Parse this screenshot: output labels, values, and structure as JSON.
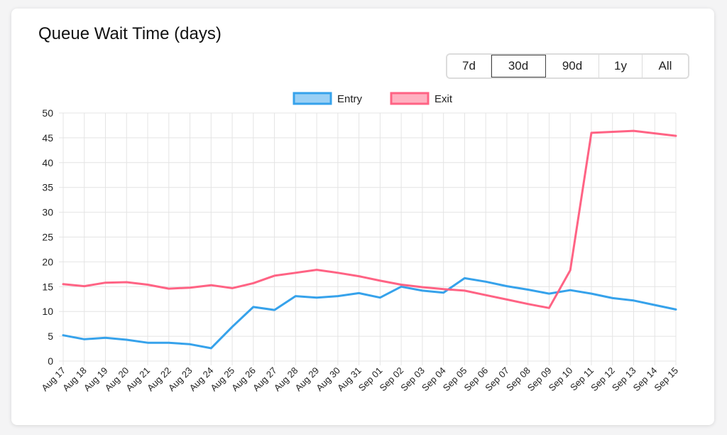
{
  "header": {
    "title": "Queue Wait Time (days)"
  },
  "range_buttons": [
    {
      "label": "7d",
      "active": false
    },
    {
      "label": "30d",
      "active": true
    },
    {
      "label": "90d",
      "active": false
    },
    {
      "label": "1y",
      "active": false
    },
    {
      "label": "All",
      "active": false
    }
  ],
  "chart_data": {
    "type": "line",
    "title": "Queue Wait Time (days)",
    "xlabel": "",
    "ylabel": "",
    "ylim": [
      0,
      50
    ],
    "yticks": [
      0,
      5,
      10,
      15,
      20,
      25,
      30,
      35,
      40,
      45,
      50
    ],
    "grid": true,
    "legend_position": "top-center",
    "categories": [
      "Aug 17",
      "Aug 18",
      "Aug 19",
      "Aug 20",
      "Aug 21",
      "Aug 22",
      "Aug 23",
      "Aug 24",
      "Aug 25",
      "Aug 26",
      "Aug 27",
      "Aug 28",
      "Aug 29",
      "Aug 30",
      "Aug 31",
      "Sep 01",
      "Sep 02",
      "Sep 03",
      "Sep 04",
      "Sep 05",
      "Sep 06",
      "Sep 07",
      "Sep 08",
      "Sep 09",
      "Sep 10",
      "Sep 11",
      "Sep 12",
      "Sep 13",
      "Sep 14",
      "Sep 15"
    ],
    "series": [
      {
        "name": "Entry",
        "color": "#36a2eb",
        "fill": "#9ad0f5",
        "values": [
          5.2,
          4.4,
          4.7,
          4.3,
          3.7,
          3.7,
          3.4,
          2.6,
          6.9,
          10.9,
          10.3,
          13.1,
          12.8,
          13.1,
          13.7,
          12.8,
          15.0,
          14.2,
          13.8,
          16.7,
          16.0,
          15.1,
          14.4,
          13.6,
          14.3,
          13.6,
          12.7,
          12.2,
          11.3,
          10.4
        ]
      },
      {
        "name": "Exit",
        "color": "#ff6384",
        "fill": "#ffb1c1",
        "values": [
          15.5,
          15.1,
          15.8,
          15.9,
          15.4,
          14.6,
          14.8,
          15.3,
          14.7,
          15.7,
          17.2,
          17.8,
          18.4,
          17.8,
          17.1,
          16.2,
          15.4,
          14.9,
          14.5,
          14.2,
          13.3,
          12.4,
          11.5,
          10.7,
          18.3,
          46.0,
          46.2,
          46.4,
          45.9,
          45.4
        ]
      }
    ]
  }
}
